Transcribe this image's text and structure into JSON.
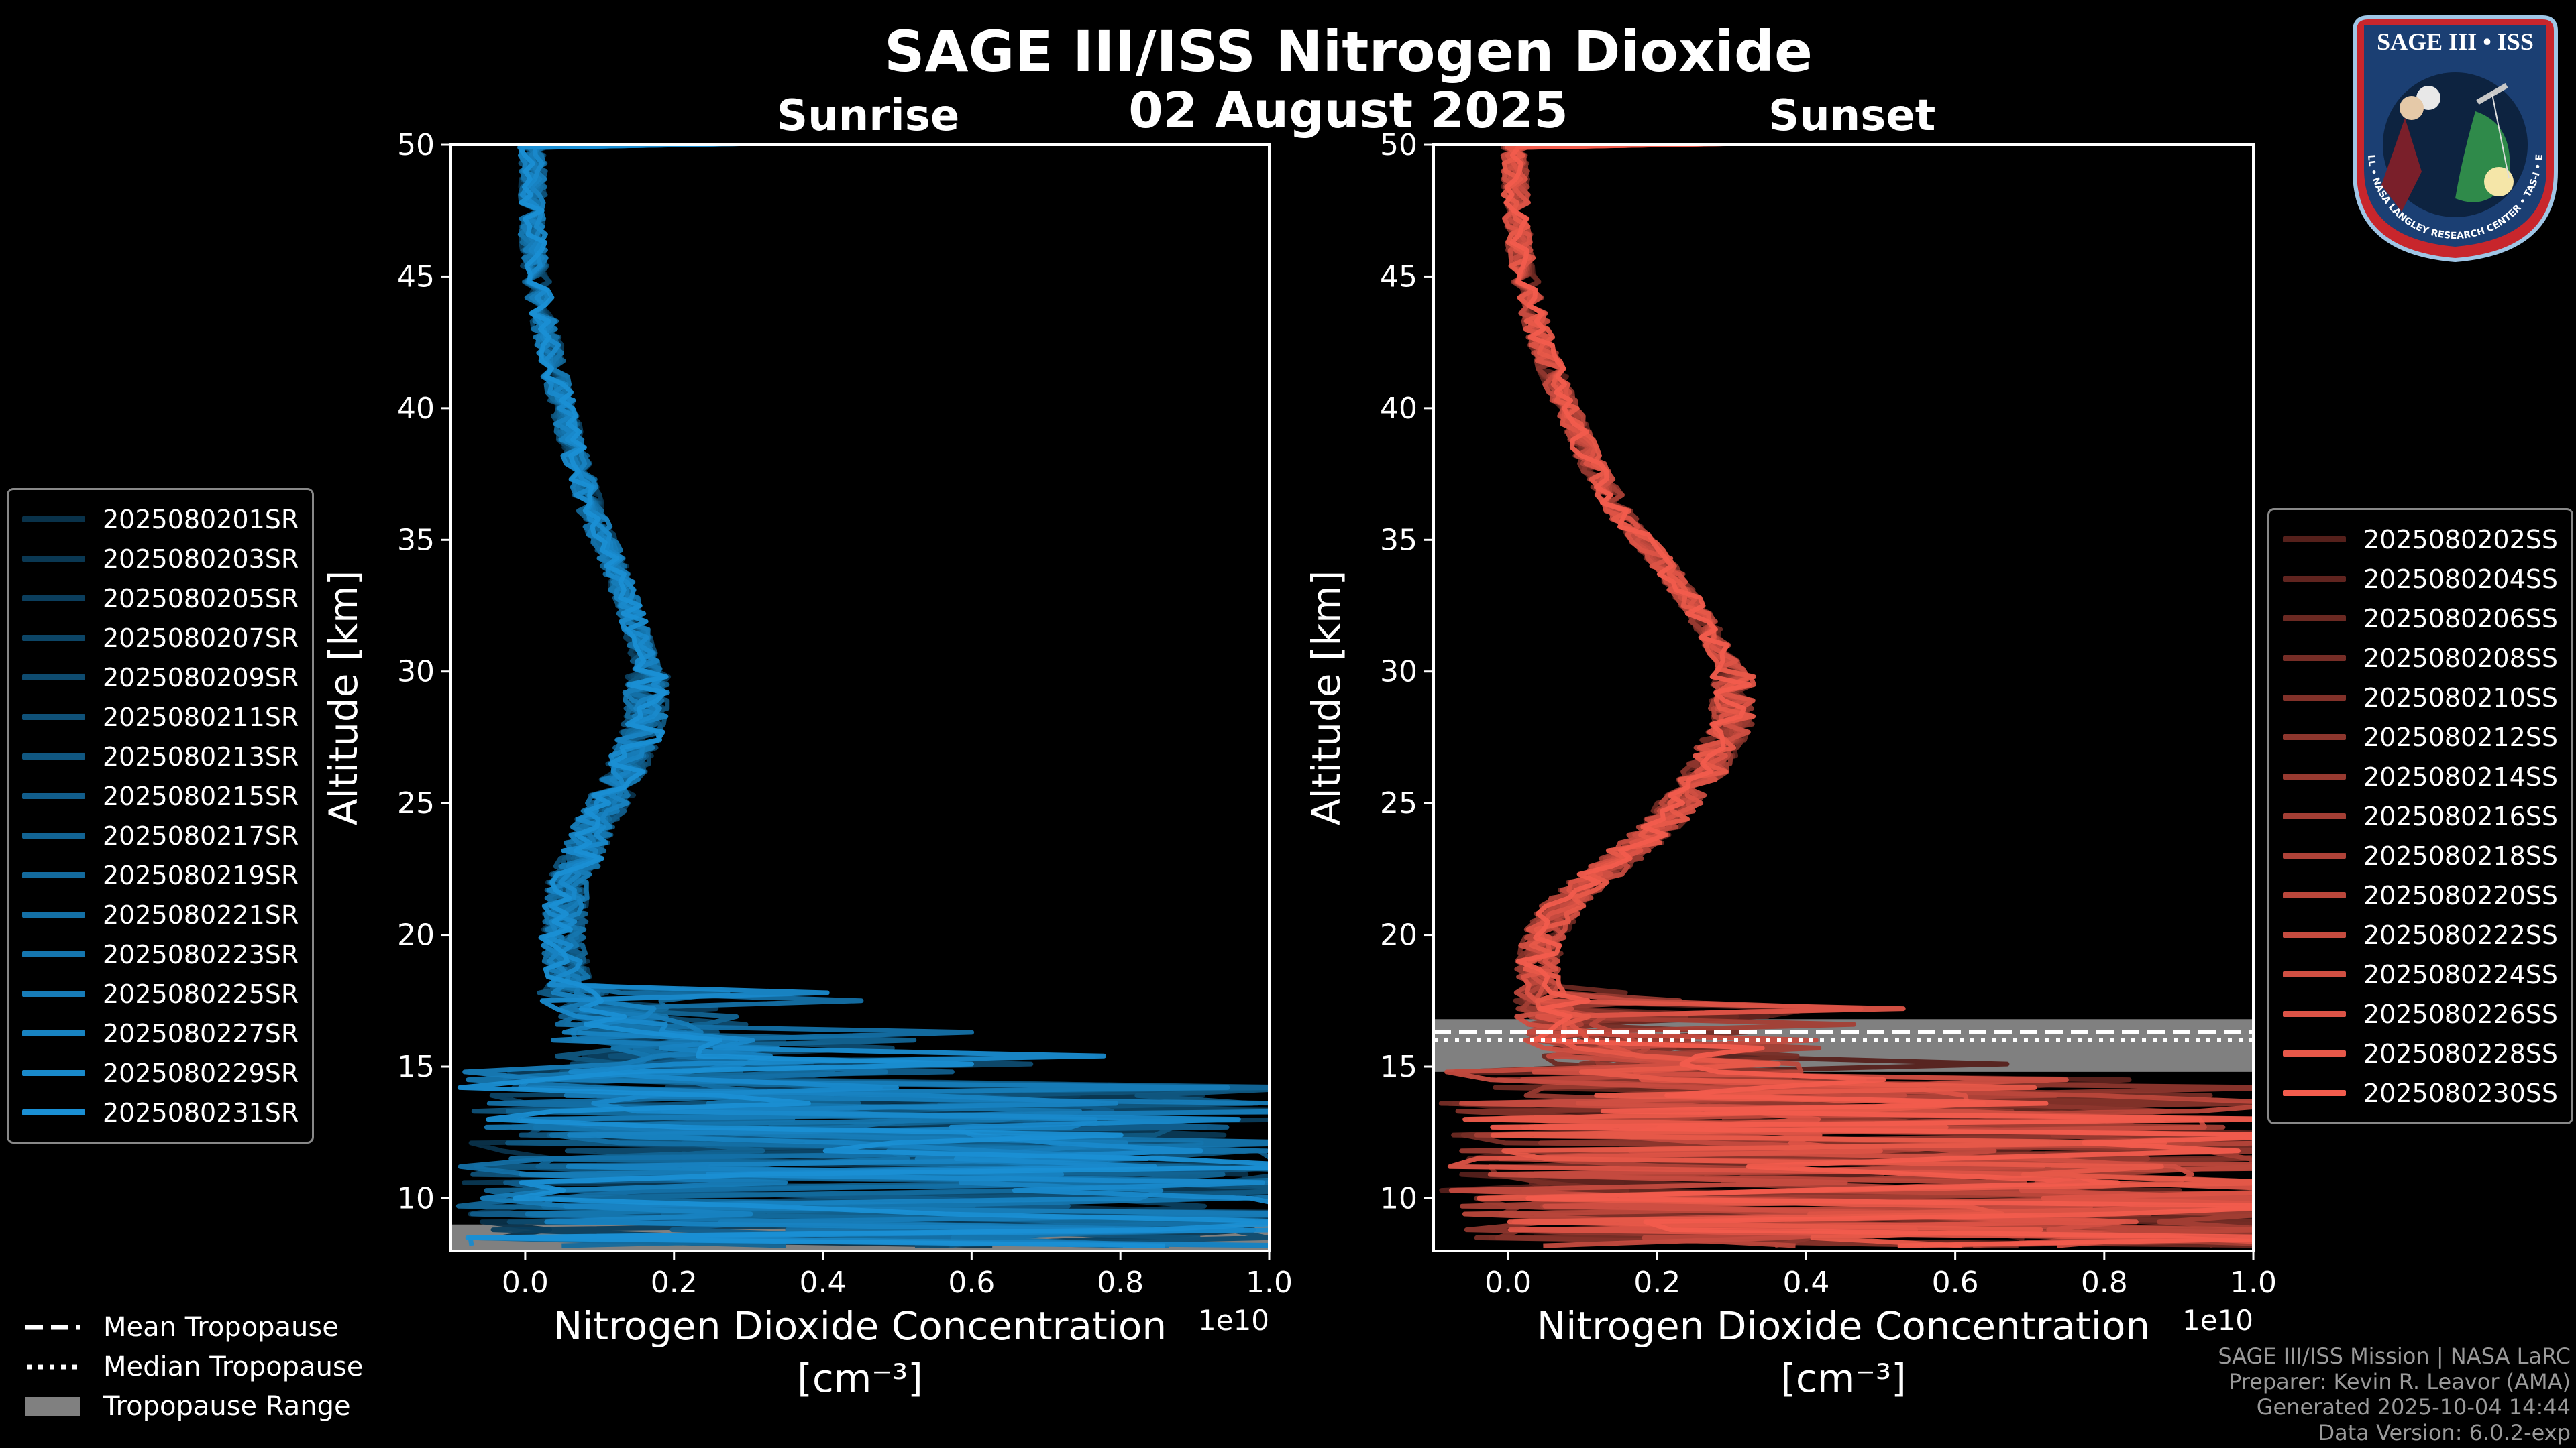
{
  "header": {
    "title": "SAGE III/ISS Nitrogen Dioxide",
    "date": "02 August 2025"
  },
  "chart_data": [
    {
      "type": "line",
      "panel": "Sunrise",
      "title": "Sunrise",
      "xlabel": "Nitrogen Dioxide Concentration",
      "xlabel_unit": "[cm⁻³]",
      "ylabel": "Altitude [km]",
      "xlim": [
        -1000000000.0,
        10000000000.0
      ],
      "ylim": [
        8,
        50
      ],
      "x_ticks": [
        "0.0",
        "0.2",
        "0.4",
        "0.6",
        "0.8",
        "1.0"
      ],
      "x_tick_values": [
        0,
        2000000000.0,
        4000000000.0,
        6000000000.0,
        8000000000.0,
        10000000000.0
      ],
      "x_multiplier": "1e10",
      "y_ticks": [
        10,
        15,
        20,
        25,
        30,
        35,
        40,
        45,
        50
      ],
      "color": "#1a8fd4",
      "series": [
        {
          "name": "2025080201SR"
        },
        {
          "name": "2025080203SR"
        },
        {
          "name": "2025080205SR"
        },
        {
          "name": "2025080207SR"
        },
        {
          "name": "2025080209SR"
        },
        {
          "name": "2025080211SR"
        },
        {
          "name": "2025080213SR"
        },
        {
          "name": "2025080215SR"
        },
        {
          "name": "2025080217SR"
        },
        {
          "name": "2025080219SR"
        },
        {
          "name": "2025080221SR"
        },
        {
          "name": "2025080223SR"
        },
        {
          "name": "2025080225SR"
        },
        {
          "name": "2025080227SR"
        },
        {
          "name": "2025080229SR"
        },
        {
          "name": "2025080231SR"
        }
      ],
      "mean_profile": {
        "altitude": [
          50,
          48,
          46,
          44,
          42,
          40,
          38,
          36,
          34,
          32,
          30,
          28,
          26,
          24,
          22,
          20,
          18,
          17,
          16,
          15,
          14,
          13,
          12,
          11,
          10,
          9
        ],
        "no2": [
          100000000.0,
          100000000.0,
          100000000.0,
          200000000.0,
          350000000.0,
          500000000.0,
          700000000.0,
          900000000.0,
          1200000000.0,
          1450000000.0,
          1650000000.0,
          1600000000.0,
          1300000000.0,
          900000000.0,
          600000000.0,
          500000000.0,
          600000000.0,
          1200000000.0,
          1600000000.0,
          2200000000.0,
          3500000000.0,
          5000000000.0,
          6000000000.0,
          6500000000.0,
          6500000000.0,
          6000000000.0
        ]
      },
      "tropopause_range": [
        8,
        9
      ]
    },
    {
      "type": "line",
      "panel": "Sunset",
      "title": "Sunset",
      "xlabel": "Nitrogen Dioxide Concentration",
      "xlabel_unit": "[cm⁻³]",
      "ylabel": "Altitude [km]",
      "xlim": [
        -1000000000.0,
        10000000000.0
      ],
      "ylim": [
        8,
        50
      ],
      "x_ticks": [
        "0.0",
        "0.2",
        "0.4",
        "0.6",
        "0.8",
        "1.0"
      ],
      "x_tick_values": [
        0,
        2000000000.0,
        4000000000.0,
        6000000000.0,
        8000000000.0,
        10000000000.0
      ],
      "x_multiplier": "1e10",
      "y_ticks": [
        10,
        15,
        20,
        25,
        30,
        35,
        40,
        45,
        50
      ],
      "color": "#f25c4d",
      "series": [
        {
          "name": "2025080202SS"
        },
        {
          "name": "2025080204SS"
        },
        {
          "name": "2025080206SS"
        },
        {
          "name": "2025080208SS"
        },
        {
          "name": "2025080210SS"
        },
        {
          "name": "2025080212SS"
        },
        {
          "name": "2025080214SS"
        },
        {
          "name": "2025080216SS"
        },
        {
          "name": "2025080218SS"
        },
        {
          "name": "2025080220SS"
        },
        {
          "name": "2025080222SS"
        },
        {
          "name": "2025080224SS"
        },
        {
          "name": "2025080226SS"
        },
        {
          "name": "2025080228SS"
        },
        {
          "name": "2025080230SS"
        }
      ],
      "mean_profile": {
        "altitude": [
          50,
          48,
          46,
          44,
          42,
          40,
          38,
          36,
          34,
          32,
          30,
          28,
          26,
          24,
          22,
          21,
          20,
          19,
          18,
          17,
          16,
          15,
          14,
          13,
          12,
          11,
          10,
          9
        ],
        "no2": [
          100000000.0,
          100000000.0,
          150000000.0,
          300000000.0,
          500000000.0,
          800000000.0,
          1100000000.0,
          1500000000.0,
          2100000000.0,
          2600000000.0,
          3000000000.0,
          3000000000.0,
          2600000000.0,
          2000000000.0,
          1100000000.0,
          700000000.0,
          500000000.0,
          400000000.0,
          400000000.0,
          500000000.0,
          1000000000.0,
          2000000000.0,
          3500000000.0,
          5000000000.0,
          6000000000.0,
          6500000000.0,
          6500000000.0,
          6000000000.0
        ]
      },
      "tropopause_range": [
        14.8,
        16.8
      ],
      "mean_tropopause": 16.3,
      "median_tropopause": 16.0
    }
  ],
  "trop_legend": {
    "mean": "Mean Tropopause",
    "median": "Median Tropopause",
    "range": "Tropopause Range"
  },
  "footer": {
    "line1": "SAGE III/ISS Mission | NASA LaRC",
    "line2": "Preparer: Kevin R. Leavor (AMA)",
    "line3": "Generated 2025-10-04 14:44",
    "line4": "Data Version: 6.0.2-exp"
  },
  "badge": {
    "title": "SAGE III • ISS",
    "ring_text": "BALL • NASA LANGLEY RESEARCH CENTER • TAS-I • ESA"
  }
}
